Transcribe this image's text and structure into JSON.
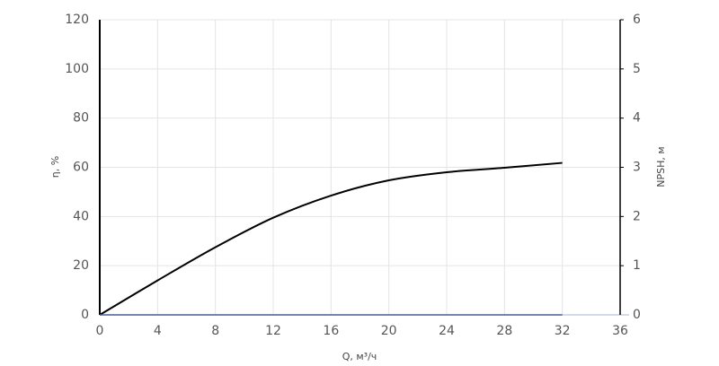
{
  "chart_data": {
    "type": "line",
    "x": [
      0,
      4,
      8,
      12,
      16,
      20,
      24,
      28,
      32
    ],
    "series": [
      {
        "color": "#000000",
        "values": [
          0,
          14,
          27.5,
          39.5,
          48.5,
          54.7,
          58,
          59.8,
          61.8
        ]
      },
      {
        "color": "#4a5a9a",
        "axis": "y2",
        "values": [
          0,
          0,
          0,
          0,
          0,
          0,
          0,
          0,
          0
        ]
      }
    ],
    "x_label": "Q, м³/ч",
    "y_label": "η, %",
    "y2_label": "NPSH, м",
    "xlim": [
      0,
      36
    ],
    "xticks": [
      0,
      4,
      8,
      12,
      16,
      20,
      24,
      28,
      32,
      36
    ],
    "ylim": [
      0,
      120
    ],
    "yticks": [
      0,
      20,
      40,
      60,
      80,
      100,
      120
    ],
    "y2lim": [
      0,
      6
    ],
    "y2ticks": [
      0,
      1,
      2,
      3,
      4,
      5,
      6
    ],
    "grid": true
  }
}
